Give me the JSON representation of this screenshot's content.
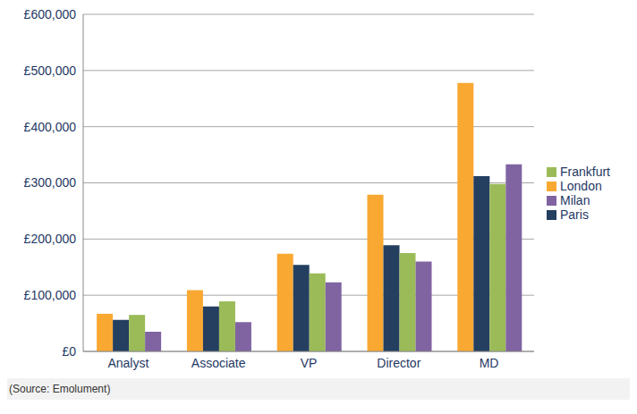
{
  "chart_data": {
    "type": "bar",
    "categories": [
      "Analyst",
      "Associate",
      "VP",
      "Director",
      "MD"
    ],
    "series": [
      {
        "name": "London",
        "color": "#f9a832",
        "values": [
          67000,
          109000,
          174000,
          279000,
          478000
        ]
      },
      {
        "name": "Paris",
        "color": "#243f60",
        "values": [
          56000,
          80000,
          154000,
          189000,
          312000
        ]
      },
      {
        "name": "Frankfurt",
        "color": "#9bbb59",
        "values": [
          65000,
          89000,
          139000,
          175000,
          298000
        ]
      },
      {
        "name": "Milan",
        "color": "#8064a2",
        "values": [
          35000,
          52000,
          123000,
          160000,
          333000
        ]
      }
    ],
    "ylim": [
      0,
      600000
    ],
    "yticks": [
      {
        "value": 0,
        "label": "£0"
      },
      {
        "value": 100000,
        "label": "£100,000"
      },
      {
        "value": 200000,
        "label": "£200,000"
      },
      {
        "value": 300000,
        "label": "£300,000"
      },
      {
        "value": 400000,
        "label": "£400,000"
      },
      {
        "value": 500000,
        "label": "£500,000"
      },
      {
        "value": 600000,
        "label": "£600,000"
      }
    ],
    "grid": true,
    "legend": "right",
    "annotations": [
      "(Source: Emolument)"
    ]
  }
}
